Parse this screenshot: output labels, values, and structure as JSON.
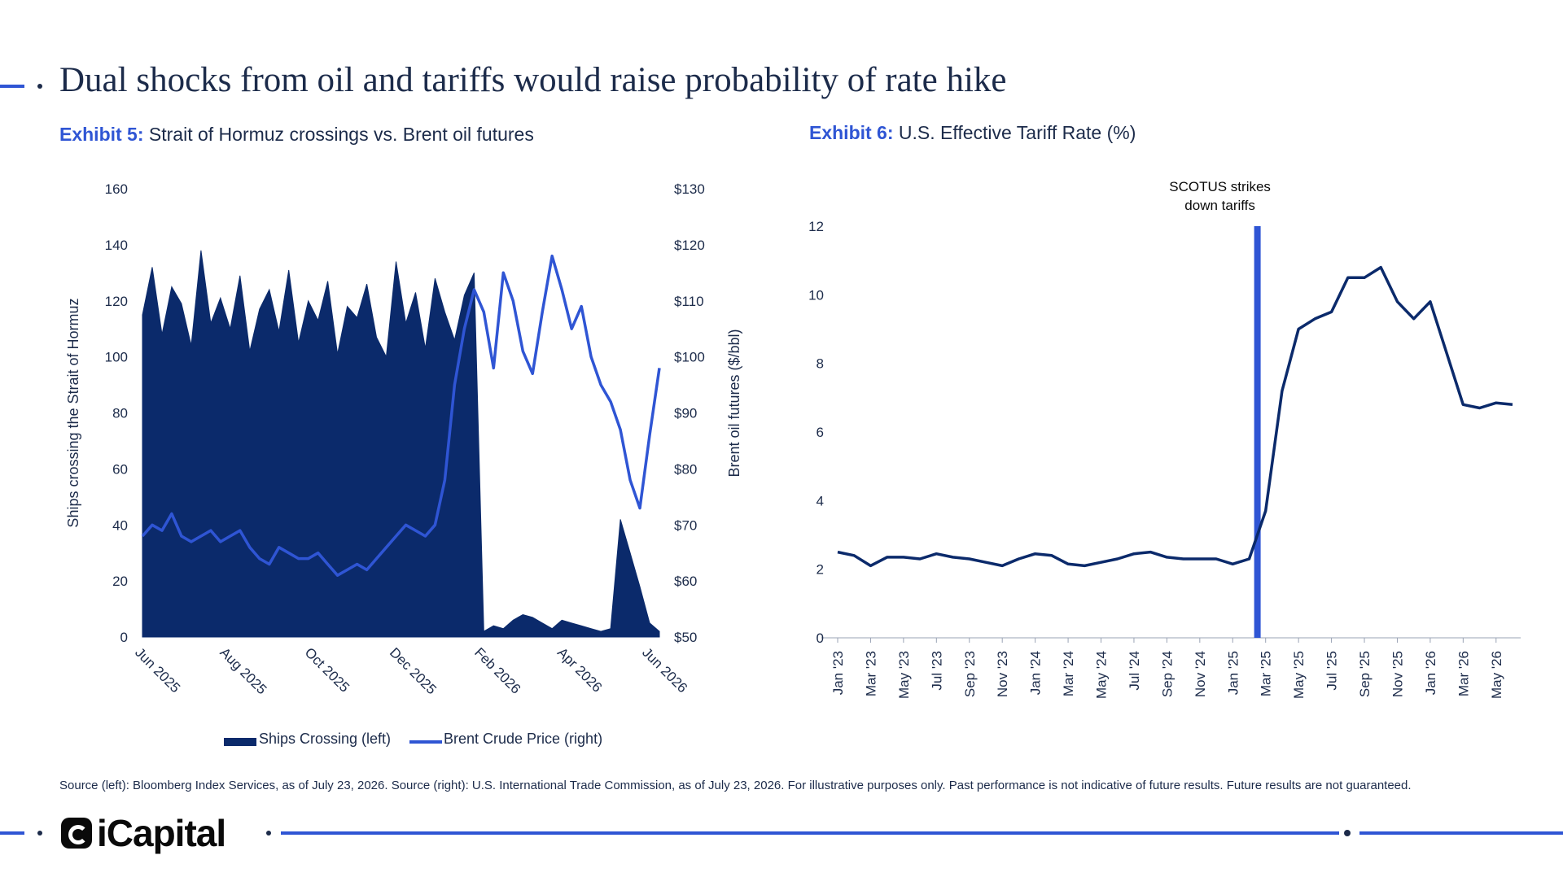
{
  "page": {
    "title": "Dual shocks from oil and tariffs would raise probability of rate hike",
    "source": "Source (left): Bloomberg Index Services, as of July 23, 2026. Source (right): U.S. International Trade Commission, as of July 23, 2026. For illustrative purposes only. Past performance is not indicative of future results. Future results are not guaranteed.",
    "logo": "iCapital",
    "colors": {
      "accent": "#2f55d4",
      "navy": "#0b2a6b",
      "text": "#1c2b4a"
    }
  },
  "exhibit5": {
    "label": "Exhibit 5:",
    "title": "Strait of Hormuz crossings vs. Brent oil futures"
  },
  "exhibit6": {
    "label": "Exhibit 6:",
    "title": "U.S. Effective Tariff Rate (%)"
  },
  "legend": {
    "ships": "Ships Crossing (left)",
    "brent": "Brent Crude Price (right)"
  },
  "chart_data": [
    {
      "type": "area",
      "title": "",
      "ylabel": "Ships crossing the Strait of Hormuz",
      "y2label": "Brent oil futures ($/bbl)",
      "ylim": [
        0,
        160
      ],
      "y2lim": [
        50,
        130
      ],
      "yticks": [
        "0",
        "20",
        "40",
        "60",
        "80",
        "100",
        "120",
        "140",
        "160"
      ],
      "y2ticks": [
        "$50",
        "$60",
        "$70",
        "$80",
        "$90",
        "$100",
        "$110",
        "$120",
        "$130"
      ],
      "xticks": [
        "Jun 2025",
        "Aug 2025",
        "Oct 2025",
        "Dec 2025",
        "Feb 2026",
        "Apr 2026",
        "Jun 2026"
      ],
      "xticks_week": [
        0,
        8.7,
        17.4,
        26.1,
        34.8,
        43.3,
        52
      ],
      "legend_position": "bottom",
      "grid": false,
      "series": [
        {
          "name": "Ships Crossing (left)",
          "axis": "left",
          "week": [
            0,
            1,
            2,
            3,
            4,
            5,
            6,
            7,
            8,
            9,
            10,
            11,
            12,
            13,
            14,
            15,
            16,
            17,
            18,
            19,
            20,
            21,
            22,
            23,
            24,
            25,
            26,
            27,
            28,
            29,
            30,
            31,
            32,
            33,
            34,
            35,
            36,
            37,
            38,
            39,
            40,
            41,
            42,
            43,
            44,
            45,
            46,
            47,
            48,
            49,
            50,
            51,
            52,
            53
          ],
          "values": [
            115,
            132,
            108,
            125,
            119,
            104,
            138,
            112,
            121,
            110,
            129,
            102,
            117,
            124,
            109,
            131,
            105,
            120,
            113,
            127,
            101,
            118,
            114,
            126,
            107,
            100,
            134,
            112,
            123,
            103,
            128,
            116,
            106,
            122,
            130,
            2,
            4,
            3,
            6,
            8,
            7,
            5,
            3,
            6,
            5,
            4,
            3,
            2,
            3,
            42,
            30,
            18,
            5,
            2
          ]
        },
        {
          "name": "Brent Crude Price (right)",
          "axis": "right",
          "week": [
            0,
            1,
            2,
            3,
            4,
            5,
            6,
            7,
            8,
            9,
            10,
            11,
            12,
            13,
            14,
            15,
            16,
            17,
            18,
            19,
            20,
            21,
            22,
            23,
            24,
            25,
            26,
            27,
            28,
            29,
            30,
            31,
            32,
            33,
            34,
            35,
            36,
            37,
            38,
            39,
            40,
            41,
            42,
            43,
            44,
            45,
            46,
            47,
            48,
            49,
            50,
            51,
            52,
            53
          ],
          "values": [
            68,
            70,
            69,
            72,
            68,
            67,
            68,
            69,
            67,
            68,
            69,
            66,
            64,
            63,
            66,
            65,
            64,
            64,
            65,
            63,
            61,
            62,
            63,
            62,
            64,
            66,
            68,
            70,
            69,
            68,
            70,
            78,
            95,
            105,
            112,
            108,
            98,
            115,
            110,
            101,
            97,
            108,
            118,
            112,
            105,
            109,
            100,
            95,
            92,
            87,
            78,
            73,
            86,
            98
          ]
        }
      ]
    },
    {
      "type": "line",
      "title": "",
      "ylim": [
        0,
        12
      ],
      "yticks": [
        "0",
        "2",
        "4",
        "6",
        "8",
        "10",
        "12"
      ],
      "xticks": [
        "Jan '23",
        "Mar '23",
        "May '23",
        "Jul '23",
        "Sep '23",
        "Nov '23",
        "Jan '24",
        "Mar '24",
        "May '24",
        "Jul '24",
        "Sep '24",
        "Nov '24",
        "Jan '25",
        "Mar '25",
        "May '25",
        "Jul '25",
        "Sep '25",
        "Nov '25",
        "Jan '26",
        "Mar '26",
        "May '26"
      ],
      "grid": false,
      "annotation": {
        "text": [
          "SCOTUS strikes",
          "down tariffs"
        ],
        "month": 25.5,
        "color": "#2f55d4"
      },
      "series": [
        {
          "name": "",
          "month": [
            0,
            1,
            2,
            3,
            4,
            5,
            6,
            7,
            8,
            9,
            10,
            11,
            12,
            13,
            14,
            15,
            16,
            17,
            18,
            19,
            20,
            21,
            22,
            23,
            24,
            25,
            26,
            27,
            28,
            29,
            30,
            31,
            32,
            33,
            34,
            35,
            36,
            37,
            38,
            39,
            40,
            41
          ],
          "values": [
            2.5,
            2.4,
            2.1,
            2.35,
            2.35,
            2.3,
            2.45,
            2.35,
            2.3,
            2.2,
            2.1,
            2.3,
            2.45,
            2.4,
            2.15,
            2.1,
            2.2,
            2.3,
            2.45,
            2.5,
            2.35,
            2.3,
            2.3,
            2.3,
            2.15,
            2.3,
            3.7,
            7.2,
            9.0,
            9.3,
            9.5,
            10.5,
            10.5,
            10.8,
            9.8,
            9.3,
            9.8,
            8.3,
            6.8,
            6.7,
            6.85,
            6.8
          ]
        }
      ]
    }
  ]
}
